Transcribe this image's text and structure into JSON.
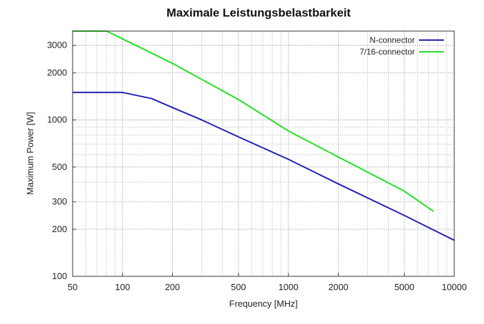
{
  "chart_data": {
    "type": "line",
    "title": "Maximale Leistungsbelastbarkeit",
    "xlabel": "Frequency [MHz]",
    "ylabel": "Maximum Power [W]",
    "x_scale": "log",
    "y_scale": "log",
    "xlim": [
      50,
      10000
    ],
    "ylim": [
      100,
      3700
    ],
    "x_ticks": [
      50,
      100,
      200,
      500,
      1000,
      2000,
      5000,
      10000
    ],
    "x_tick_labels": [
      "50",
      "100",
      "200",
      "500",
      "1000",
      "2000",
      "5000",
      "10000"
    ],
    "y_ticks": [
      100,
      200,
      300,
      500,
      1000,
      2000,
      3000
    ],
    "y_tick_labels": [
      "100",
      "200",
      "300",
      "500",
      "1000",
      "2000",
      "3000"
    ],
    "grid": true,
    "legend_position": "top-right",
    "series": [
      {
        "name": "N-connector",
        "color": "#1f1fb4",
        "points": [
          [
            50,
            1500
          ],
          [
            100,
            1500
          ],
          [
            150,
            1370
          ],
          [
            200,
            1200
          ],
          [
            300,
            1000
          ],
          [
            500,
            780
          ],
          [
            1000,
            560
          ],
          [
            2000,
            390
          ],
          [
            5000,
            245
          ],
          [
            10000,
            170
          ]
        ]
      },
      {
        "name": "7/16-connector",
        "color": "#22e022",
        "points": [
          [
            50,
            3700
          ],
          [
            80,
            3700
          ],
          [
            100,
            3300
          ],
          [
            200,
            2300
          ],
          [
            500,
            1350
          ],
          [
            1000,
            850
          ],
          [
            2000,
            580
          ],
          [
            5000,
            350
          ],
          [
            7500,
            260
          ]
        ]
      }
    ]
  }
}
